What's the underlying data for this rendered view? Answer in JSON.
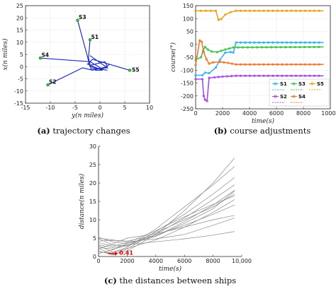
{
  "chart_data": [
    {
      "type": "line",
      "panel": "a",
      "caption_letter": "(a)",
      "caption_text": "trajectory changes",
      "xlabel": "y(n miles)",
      "ylabel": "x(n miles)",
      "xlim": [
        -15,
        10
      ],
      "ylim": [
        -15,
        25
      ],
      "xticks": [
        -15,
        -10,
        -5,
        0,
        5,
        10
      ],
      "yticks": [
        -15,
        -10,
        -5,
        0,
        5,
        10,
        15,
        20,
        25
      ],
      "line_color": "#1f2fbf",
      "ships": [
        {
          "name": "S1",
          "start": [
            -2.0,
            11.0
          ],
          "path": [
            [
              -2.0,
              11.0
            ],
            [
              -2.3,
              3.5
            ],
            [
              -1.8,
              -1.0
            ],
            [
              1.5,
              -0.5
            ],
            [
              -2.0,
              4.5
            ]
          ]
        },
        {
          "name": "S2",
          "start": [
            -10.5,
            -7.5
          ],
          "path": [
            [
              -10.5,
              -7.5
            ],
            [
              -3.5,
              -0.5
            ],
            [
              -1.5,
              -1.5
            ],
            [
              1.5,
              0.0
            ],
            [
              1.0,
              2.0
            ],
            [
              -2.0,
              0.5
            ]
          ]
        },
        {
          "name": "S3",
          "start": [
            -4.5,
            19.0
          ],
          "path": [
            [
              -4.5,
              19.0
            ],
            [
              -2.5,
              4.0
            ],
            [
              -2.0,
              0.0
            ],
            [
              0.0,
              -1.0
            ],
            [
              1.5,
              -1.5
            ]
          ]
        },
        {
          "name": "S4",
          "start": [
            -12.0,
            3.5
          ],
          "path": [
            [
              -12.0,
              3.5
            ],
            [
              -2.0,
              2.0
            ],
            [
              0.5,
              -1.0
            ],
            [
              2.0,
              1.0
            ]
          ]
        },
        {
          "name": "S5",
          "start": [
            6.0,
            -1.5
          ],
          "path": [
            [
              6.0,
              -1.5
            ],
            [
              -1.5,
              3.0
            ],
            [
              -2.5,
              1.0
            ],
            [
              0.5,
              -1.5
            ],
            [
              -1.0,
              -1.5
            ]
          ]
        }
      ]
    },
    {
      "type": "line",
      "panel": "b",
      "caption_letter": "(b)",
      "caption_text": "course adjustments",
      "xlabel": "time(s)",
      "ylabel": "course(°)",
      "xlim": [
        0,
        10000
      ],
      "ylim": [
        -250,
        150
      ],
      "xticks": [
        0,
        2000,
        4000,
        6000,
        8000,
        10000
      ],
      "yticks": [
        -250,
        -200,
        -150,
        -100,
        -50,
        0,
        50,
        100,
        150
      ],
      "legend_placement": "bottom-right",
      "series": [
        {
          "name": "S1",
          "color": "#3ab4f2",
          "marker": "diamond",
          "points": [
            [
              0,
              -120
            ],
            [
              500,
              -120
            ],
            [
              700,
              -110
            ],
            [
              1000,
              -112
            ],
            [
              1500,
              -90
            ],
            [
              1800,
              -60
            ],
            [
              2200,
              -32
            ],
            [
              2600,
              -30
            ],
            [
              2800,
              -32
            ],
            [
              3000,
              7
            ],
            [
              9500,
              7
            ]
          ]
        },
        {
          "name": "S2",
          "color": "#a64de0",
          "marker": "circle",
          "points": [
            [
              0,
              -135
            ],
            [
              500,
              -135
            ],
            [
              600,
              -200
            ],
            [
              700,
              -215
            ],
            [
              850,
              -220
            ],
            [
              1000,
              -130
            ],
            [
              1400,
              -128
            ],
            [
              2000,
              -125
            ],
            [
              3000,
              -122
            ],
            [
              9500,
              -122
            ]
          ]
        },
        {
          "name": "S3",
          "color": "#41c24a",
          "marker": "diamond",
          "points": [
            [
              0,
              -60
            ],
            [
              400,
              -50
            ],
            [
              550,
              -25
            ],
            [
              700,
              -10
            ],
            [
              900,
              -20
            ],
            [
              1200,
              -28
            ],
            [
              1600,
              -30
            ],
            [
              2200,
              -20
            ],
            [
              2800,
              -12
            ],
            [
              9500,
              -10
            ]
          ]
        },
        {
          "name": "S4",
          "color": "#f07a2a",
          "marker": "circle",
          "points": [
            [
              0,
              -80
            ],
            [
              300,
              15
            ],
            [
              450,
              10
            ],
            [
              600,
              -30
            ],
            [
              800,
              -58
            ],
            [
              1000,
              -75
            ],
            [
              1300,
              -70
            ],
            [
              1800,
              -68
            ],
            [
              2400,
              -72
            ],
            [
              3000,
              -78
            ],
            [
              9500,
              -78
            ]
          ]
        },
        {
          "name": "S5",
          "color": "#e8a61c",
          "marker": "diamond",
          "points": [
            [
              0,
              130
            ],
            [
              1500,
              130
            ],
            [
              1700,
              95
            ],
            [
              1900,
              98
            ],
            [
              2200,
              115
            ],
            [
              2600,
              125
            ],
            [
              3000,
              130
            ],
            [
              9500,
              130
            ]
          ]
        }
      ]
    },
    {
      "type": "line",
      "panel": "c",
      "caption_letter": "(c)",
      "caption_text": "the distances between ships",
      "xlabel": "time(s)",
      "ylabel": "distance(n miles)",
      "xlim": [
        0,
        10000
      ],
      "ylim": [
        0,
        30
      ],
      "xticks": [
        "0",
        "2000",
        "4000",
        "6000",
        "8000",
        "10,000"
      ],
      "yticks": [
        0,
        5,
        10,
        15,
        20,
        25,
        30
      ],
      "annotation": "0.41",
      "annotation_point": [
        900,
        0.41
      ],
      "line_color": "#8a8a8a",
      "series": [
        [
          [
            0,
            2.2
          ],
          [
            1000,
            0.6
          ],
          [
            2000,
            1.5
          ],
          [
            4000,
            6.0
          ],
          [
            6000,
            12.5
          ],
          [
            8000,
            20.0
          ],
          [
            9500,
            26.8
          ]
        ],
        [
          [
            0,
            3.0
          ],
          [
            1000,
            1.2
          ],
          [
            2000,
            2.5
          ],
          [
            4000,
            7.5
          ],
          [
            6000,
            13.5
          ],
          [
            8000,
            19.5
          ],
          [
            9500,
            24.5
          ]
        ],
        [
          [
            0,
            1.5
          ],
          [
            1000,
            0.41
          ],
          [
            2000,
            2.0
          ],
          [
            4000,
            6.8
          ],
          [
            6000,
            11.5
          ],
          [
            8000,
            17.0
          ],
          [
            9500,
            21.5
          ]
        ],
        [
          [
            0,
            4.8
          ],
          [
            1000,
            3.2
          ],
          [
            2000,
            2.8
          ],
          [
            4000,
            6.0
          ],
          [
            6000,
            10.5
          ],
          [
            8000,
            15.5
          ],
          [
            9500,
            19.5
          ]
        ],
        [
          [
            0,
            5.2
          ],
          [
            1000,
            4.0
          ],
          [
            2000,
            3.5
          ],
          [
            4000,
            5.5
          ],
          [
            6000,
            9.5
          ],
          [
            8000,
            14.0
          ],
          [
            9500,
            18.0
          ]
        ],
        [
          [
            0,
            2.5
          ],
          [
            1000,
            2.0
          ],
          [
            2000,
            3.0
          ],
          [
            4000,
            6.5
          ],
          [
            6000,
            10.0
          ],
          [
            8000,
            13.5
          ],
          [
            9500,
            17.0
          ]
        ],
        [
          [
            0,
            3.8
          ],
          [
            1000,
            2.8
          ],
          [
            2000,
            3.8
          ],
          [
            4000,
            7.0
          ],
          [
            6000,
            10.8
          ],
          [
            8000,
            14.2
          ],
          [
            9500,
            16.5
          ]
        ],
        [
          [
            0,
            1.2
          ],
          [
            1000,
            1.0
          ],
          [
            2000,
            2.2
          ],
          [
            4000,
            4.5
          ],
          [
            6000,
            8.0
          ],
          [
            8000,
            12.0
          ],
          [
            9500,
            15.5
          ]
        ],
        [
          [
            0,
            4.2
          ],
          [
            1000,
            4.4
          ],
          [
            2000,
            4.2
          ],
          [
            4000,
            5.8
          ],
          [
            6000,
            8.5
          ],
          [
            8000,
            11.5
          ],
          [
            9500,
            14.0
          ]
        ],
        [
          [
            0,
            2.0
          ],
          [
            1000,
            3.5
          ],
          [
            2000,
            5.0
          ],
          [
            4000,
            6.2
          ],
          [
            6000,
            8.0
          ],
          [
            8000,
            10.0
          ],
          [
            9500,
            11.2
          ]
        ],
        [
          [
            0,
            5.0
          ],
          [
            1000,
            4.5
          ],
          [
            2000,
            4.0
          ],
          [
            4000,
            4.8
          ],
          [
            6000,
            6.0
          ],
          [
            8000,
            8.5
          ],
          [
            9500,
            10.5
          ]
        ],
        [
          [
            0,
            3.2
          ],
          [
            1000,
            2.4
          ],
          [
            2000,
            3.2
          ],
          [
            4000,
            4.0
          ],
          [
            6000,
            4.8
          ],
          [
            8000,
            5.8
          ],
          [
            9500,
            6.8
          ]
        ],
        [
          [
            0,
            0.8
          ],
          [
            1000,
            1.8
          ],
          [
            2000,
            3.6
          ],
          [
            4000,
            5.5
          ],
          [
            6000,
            9.0
          ],
          [
            8000,
            13.0
          ],
          [
            9500,
            17.8
          ]
        ]
      ]
    }
  ]
}
